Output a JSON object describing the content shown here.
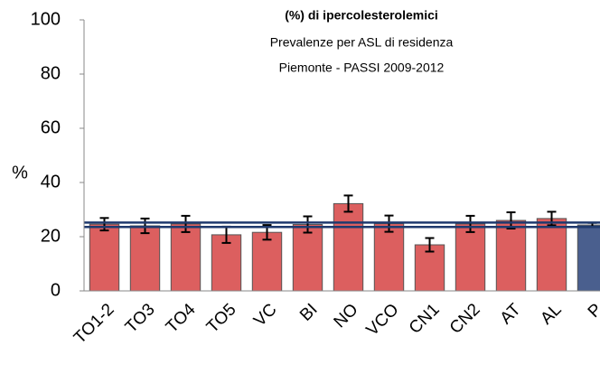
{
  "chart_data": {
    "type": "bar",
    "title": [
      "(%) di ipercolesterolemici",
      "Prevalenze per ASL di residenza",
      "Piemonte - PASSI 2009-2012"
    ],
    "y_label": "%",
    "categories": [
      "TO1-2",
      "TO3",
      "TO4",
      "TO5",
      "VC",
      "BI",
      "NO",
      "VCO",
      "CN1",
      "CN2",
      "AT",
      "AL",
      "P"
    ],
    "values": [
      24.6,
      24.0,
      24.7,
      20.7,
      21.6,
      24.5,
      32.2,
      24.8,
      17.0,
      24.7,
      26.0,
      26.7,
      24.3
    ],
    "errors": [
      2.3,
      2.7,
      3.0,
      3.0,
      2.7,
      3.0,
      3.0,
      3.0,
      2.5,
      3.0,
      3.0,
      2.5,
      0.8
    ],
    "colors": [
      "#dc5f5f",
      "#dc5f5f",
      "#dc5f5f",
      "#dc5f5f",
      "#dc5f5f",
      "#dc5f5f",
      "#dc5f5f",
      "#dc5f5f",
      "#dc5f5f",
      "#dc5f5f",
      "#dc5f5f",
      "#dc5f5f",
      "#4a5f8e"
    ],
    "ref_lines": [
      23.6,
      25.2
    ],
    "ref_color": "#1f3a6e",
    "ylim": [
      0,
      100
    ],
    "yticks": [
      0,
      20,
      40,
      60,
      80,
      100
    ]
  }
}
